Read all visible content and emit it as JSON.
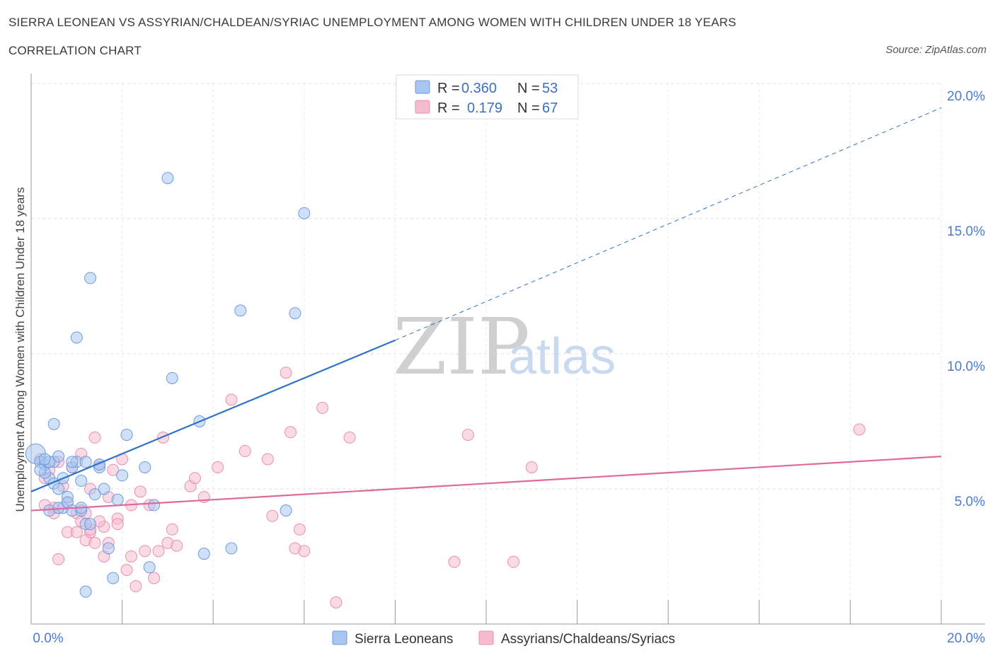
{
  "header": {
    "title": "SIERRA LEONEAN VS ASSYRIAN/CHALDEAN/SYRIAC UNEMPLOYMENT AMONG WOMEN WITH CHILDREN UNDER 18 YEARS",
    "subtitle": "CORRELATION CHART",
    "source": "Source: ZipAtlas.com"
  },
  "watermark": {
    "zip": "ZIP",
    "atlas": "atlas"
  },
  "colors": {
    "blue_fill": "#a9c6f0",
    "blue_stroke": "#6d9be0",
    "blue_line": "#2f72c9",
    "pink_fill": "#f5bcd0",
    "pink_stroke": "#ea8fb0",
    "pink_line": "#e0699a",
    "grid": "#dcdcdc",
    "tick_text": "#4b7bd0"
  },
  "legend": {
    "rows": [
      {
        "r_label": "R =",
        "r_value": "0.360",
        "n_label": "N =",
        "n_value": "53"
      },
      {
        "r_label": "R =",
        "r_value": "0.179",
        "n_label": "N =",
        "n_value": "67"
      }
    ]
  },
  "chart_data": {
    "type": "scatter",
    "title": "SIERRA LEONEAN VS ASSYRIAN/CHALDEAN/SYRIAC UNEMPLOYMENT AMONG WOMEN WITH CHILDREN UNDER 18 YEARS",
    "ylabel": "Unemployment Among Women with Children Under 18 years",
    "xlabel": "",
    "xlim": [
      0,
      20
    ],
    "ylim": [
      0,
      20
    ],
    "x_tick_labels": [
      "0.0%",
      "20.0%"
    ],
    "y_tick_labels": [
      "5.0%",
      "10.0%",
      "15.0%",
      "20.0%"
    ],
    "y_ticks": [
      5,
      10,
      15,
      20
    ],
    "grid": true,
    "legend_position": "top-center",
    "series": [
      {
        "name": "Sierra Leoneans",
        "color": "#a9c6f0",
        "trend": {
          "x": [
            0,
            8
          ],
          "y": [
            4.9,
            10.5
          ],
          "extended_to": [
            20,
            19.1
          ]
        },
        "points": [
          [
            0.1,
            6.3
          ],
          [
            0.2,
            6.0
          ],
          [
            0.3,
            5.9
          ],
          [
            0.4,
            5.4
          ],
          [
            0.5,
            5.2
          ],
          [
            0.3,
            5.6
          ],
          [
            0.5,
            6.0
          ],
          [
            0.6,
            6.2
          ],
          [
            0.6,
            5.0
          ],
          [
            0.7,
            4.3
          ],
          [
            0.8,
            4.7
          ],
          [
            0.9,
            5.8
          ],
          [
            1.0,
            6.0
          ],
          [
            1.1,
            5.3
          ],
          [
            0.4,
            4.2
          ],
          [
            0.6,
            4.3
          ],
          [
            0.8,
            4.5
          ],
          [
            0.9,
            4.2
          ],
          [
            1.1,
            4.2
          ],
          [
            1.2,
            3.7
          ],
          [
            1.3,
            3.7
          ],
          [
            1.5,
            5.8
          ],
          [
            1.6,
            5.0
          ],
          [
            1.7,
            2.8
          ],
          [
            1.8,
            1.7
          ],
          [
            1.9,
            4.6
          ],
          [
            2.0,
            5.5
          ],
          [
            2.1,
            7.0
          ],
          [
            2.5,
            5.8
          ],
          [
            2.6,
            2.1
          ],
          [
            2.7,
            4.4
          ],
          [
            0.5,
            7.4
          ],
          [
            1.5,
            5.9
          ],
          [
            1.0,
            10.6
          ],
          [
            1.3,
            12.8
          ],
          [
            3.0,
            16.5
          ],
          [
            3.1,
            9.1
          ],
          [
            3.7,
            7.5
          ],
          [
            4.6,
            11.6
          ],
          [
            5.8,
            11.5
          ],
          [
            6.0,
            15.2
          ],
          [
            5.6,
            4.2
          ],
          [
            3.8,
            2.6
          ],
          [
            4.4,
            2.8
          ],
          [
            1.2,
            1.2
          ],
          [
            0.2,
            5.7
          ],
          [
            0.4,
            6.0
          ],
          [
            0.9,
            6.0
          ],
          [
            1.4,
            4.8
          ],
          [
            0.7,
            5.4
          ],
          [
            1.1,
            4.3
          ],
          [
            0.3,
            6.1
          ],
          [
            1.2,
            6.0
          ]
        ]
      },
      {
        "name": "Assyrians/Chaldeans/Syriacs",
        "color": "#f5bcd0",
        "trend": {
          "x": [
            0,
            20
          ],
          "y": [
            4.2,
            6.2
          ]
        },
        "points": [
          [
            0.2,
            6.1
          ],
          [
            0.3,
            5.4
          ],
          [
            0.4,
            5.7
          ],
          [
            0.5,
            4.3
          ],
          [
            0.6,
            6.0
          ],
          [
            0.7,
            5.1
          ],
          [
            0.8,
            4.5
          ],
          [
            0.9,
            5.8
          ],
          [
            1.0,
            4.1
          ],
          [
            1.1,
            3.8
          ],
          [
            1.2,
            3.1
          ],
          [
            1.3,
            3.4
          ],
          [
            1.4,
            3.0
          ],
          [
            1.5,
            5.9
          ],
          [
            1.6,
            3.6
          ],
          [
            1.7,
            4.7
          ],
          [
            1.8,
            5.7
          ],
          [
            1.9,
            3.9
          ],
          [
            2.0,
            6.1
          ],
          [
            2.1,
            2.0
          ],
          [
            2.2,
            2.5
          ],
          [
            2.3,
            1.4
          ],
          [
            2.4,
            4.9
          ],
          [
            2.5,
            2.7
          ],
          [
            2.6,
            4.4
          ],
          [
            2.7,
            1.7
          ],
          [
            2.8,
            2.7
          ],
          [
            2.9,
            6.9
          ],
          [
            3.0,
            3.0
          ],
          [
            3.1,
            3.5
          ],
          [
            3.2,
            2.9
          ],
          [
            3.5,
            5.1
          ],
          [
            3.6,
            5.4
          ],
          [
            3.8,
            4.7
          ],
          [
            4.1,
            5.8
          ],
          [
            4.4,
            8.3
          ],
          [
            4.7,
            6.4
          ],
          [
            5.2,
            6.1
          ],
          [
            5.3,
            4.0
          ],
          [
            5.6,
            9.3
          ],
          [
            5.7,
            7.1
          ],
          [
            5.8,
            2.8
          ],
          [
            5.9,
            3.5
          ],
          [
            6.0,
            2.7
          ],
          [
            6.4,
            8.0
          ],
          [
            6.7,
            0.8
          ],
          [
            7.0,
            6.9
          ],
          [
            9.3,
            2.3
          ],
          [
            9.6,
            7.0
          ],
          [
            10.6,
            2.3
          ],
          [
            11.0,
            5.8
          ],
          [
            18.2,
            7.2
          ],
          [
            1.3,
            3.5
          ],
          [
            1.5,
            3.8
          ],
          [
            0.6,
            2.4
          ],
          [
            1.7,
            3.0
          ],
          [
            1.4,
            6.9
          ],
          [
            0.8,
            3.4
          ],
          [
            1.1,
            6.3
          ],
          [
            1.2,
            4.1
          ],
          [
            0.3,
            4.4
          ],
          [
            1.9,
            3.7
          ],
          [
            2.2,
            4.4
          ],
          [
            0.5,
            4.1
          ],
          [
            1.0,
            3.4
          ],
          [
            1.3,
            5.0
          ],
          [
            1.6,
            2.5
          ]
        ]
      }
    ]
  },
  "bottom_legend": {
    "items": [
      {
        "label": "Sierra Leoneans"
      },
      {
        "label": "Assyrians/Chaldeans/Syriacs"
      }
    ]
  }
}
